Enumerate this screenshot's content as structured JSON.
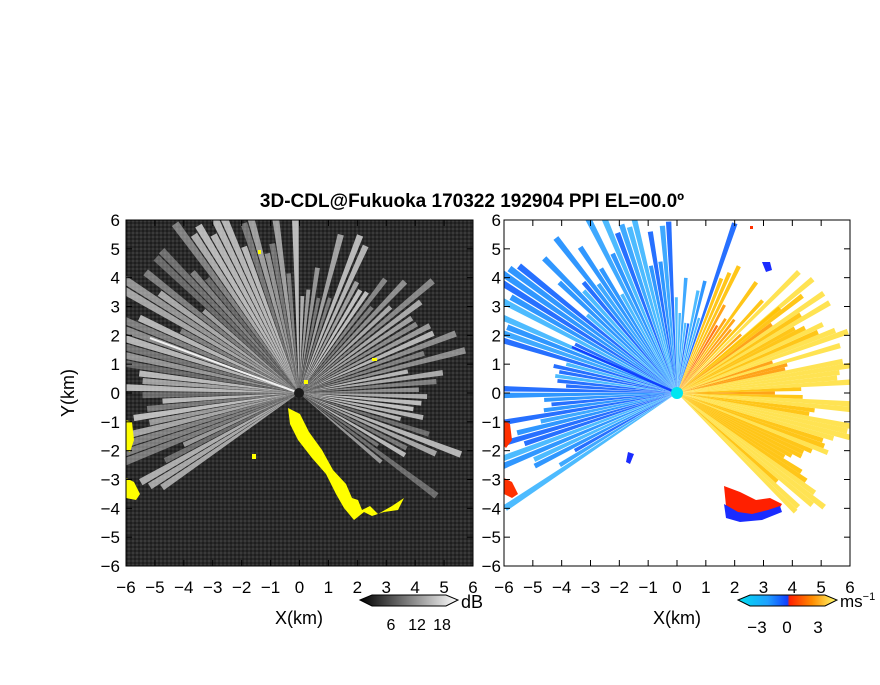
{
  "chart_data": {
    "type": "radar-ppi",
    "title": "3D-CDL@Fukuoka 170322 192904 PPI EL=00.0º",
    "panels": [
      {
        "name": "reflectivity",
        "xlabel": "X(km)",
        "ylabel": "Y(km)",
        "xlim": [
          -6,
          6
        ],
        "ylim": [
          -6,
          6
        ],
        "colorbar": {
          "unit": "dB",
          "ticks": [
            6,
            12,
            18
          ],
          "colors": [
            "#000000",
            "#ffffff"
          ],
          "overflow_color": "#ffff00"
        }
      },
      {
        "name": "doppler-velocity",
        "xlabel": "X(km)",
        "xlim": [
          -6,
          6
        ],
        "ylim": [
          -6,
          6
        ],
        "colorbar": {
          "unit": "ms",
          "unit_exponent": "−1",
          "ticks": [
            -3,
            0,
            3
          ],
          "colors": [
            "#00e0f0",
            "#1060ff",
            "#ff2000",
            "#ff9000",
            "#ffff60"
          ]
        }
      }
    ],
    "ticks": [
      -6,
      -5,
      -4,
      -3,
      -2,
      -1,
      0,
      1,
      2,
      3,
      4,
      5,
      6
    ],
    "tick_labels": [
      "−6",
      "−5",
      "−4",
      "−3",
      "−2",
      "−1",
      "0",
      "1",
      "2",
      "3",
      "4",
      "5",
      "6"
    ],
    "cbar_tick_labels_dB": [
      "6",
      "12",
      "18"
    ],
    "cbar_tick_labels_vel": [
      "−3",
      "0",
      "3"
    ],
    "grid": false
  }
}
